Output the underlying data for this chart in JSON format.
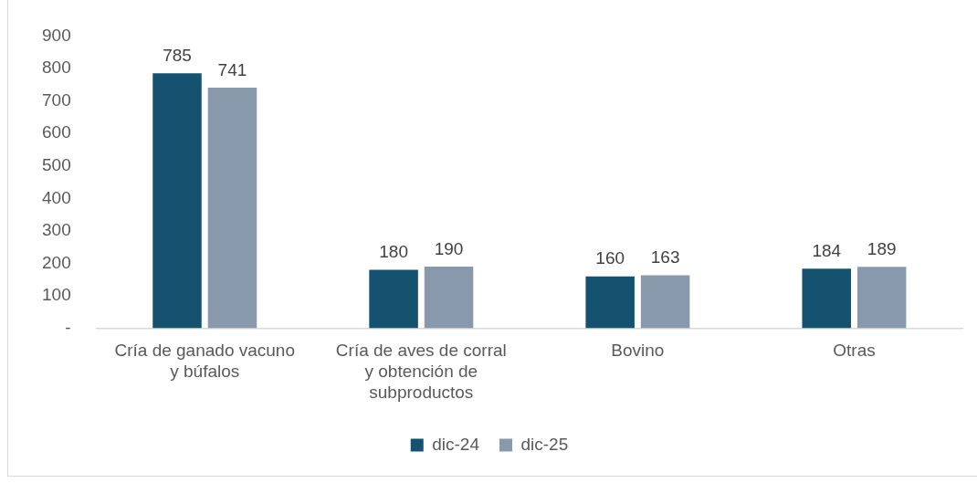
{
  "chart_data": {
    "type": "bar",
    "categories": [
      "Cría de ganado vacuno y búfalos",
      "Cría de aves de corral y obtención de subproductos",
      "Bovino",
      "Otras"
    ],
    "series": [
      {
        "name": "dic-24",
        "color": "#145270",
        "values": [
          785,
          180,
          160,
          184
        ]
      },
      {
        "name": "dic-25",
        "color": "#8799aa",
        "values": [
          741,
          190,
          163,
          189
        ]
      }
    ],
    "ylim": [
      0,
      900
    ],
    "yticks": [
      {
        "value": 0,
        "label": "-"
      },
      100,
      200,
      300,
      400,
      500,
      600,
      700,
      800,
      900
    ],
    "legend": "bottom",
    "data_labels": true
  }
}
